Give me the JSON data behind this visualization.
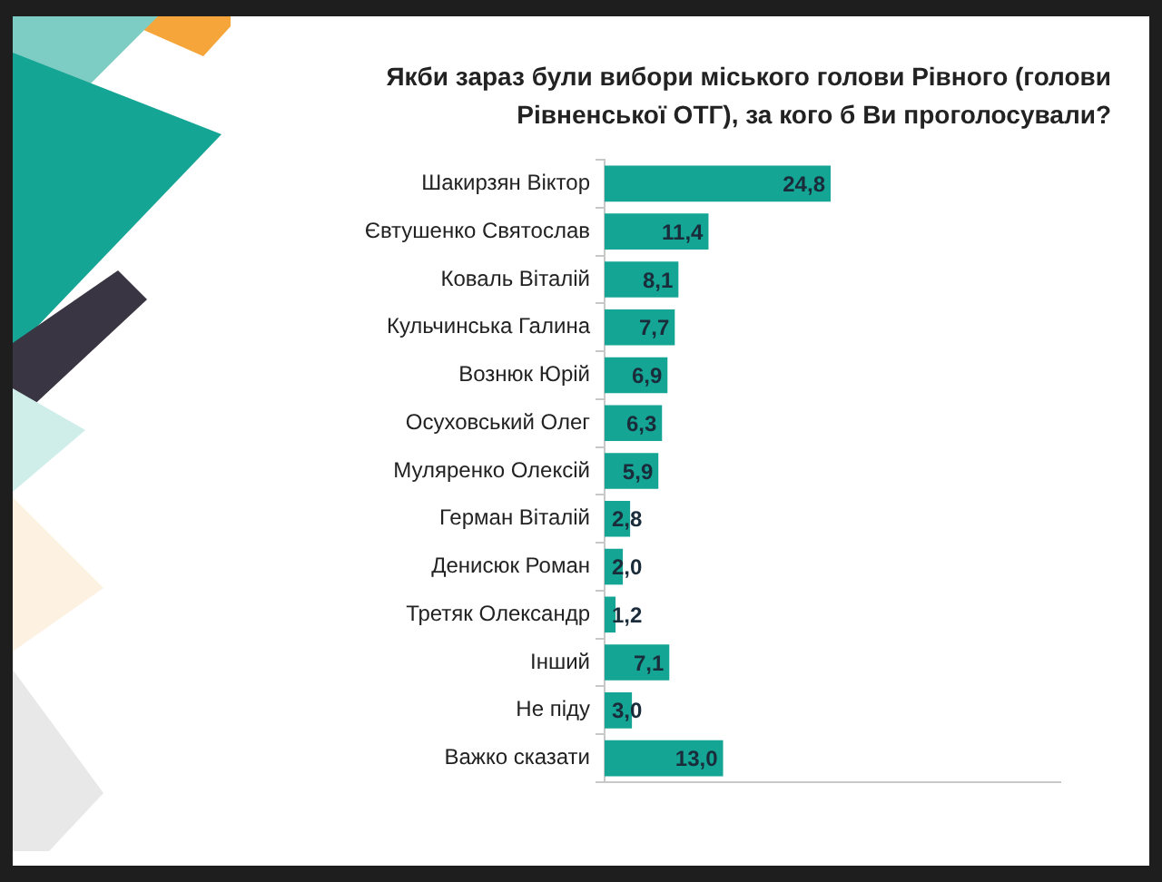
{
  "chart_data": {
    "type": "bar",
    "orientation": "horizontal",
    "title": "Якби зараз були вибори міського голови Рівного (голови Рівненської ОТГ), за кого б Ви проголосували?",
    "categories": [
      "Шакирзян Віктор",
      "Євтушенко Святослав",
      "Коваль Віталій",
      "Кульчинська Галина",
      "Вознюк Юрій",
      "Осуховський Олег",
      "Муляренко Олексій",
      "Герман Віталій",
      "Денисюк Роман",
      "Третяк Олександр",
      "Інший",
      "Не піду",
      "Важко сказати"
    ],
    "values": [
      24.8,
      11.4,
      8.1,
      7.7,
      6.9,
      6.3,
      5.9,
      2.8,
      2.0,
      1.2,
      7.1,
      3.0,
      13.0
    ],
    "value_labels": [
      "24,8",
      "11,4",
      "8,1",
      "7,7",
      "6,9",
      "6,3",
      "5,9",
      "2,8",
      "2,0",
      "1,2",
      "7,1",
      "3,0",
      "13,0"
    ],
    "color": "#14a595",
    "tick_labels": "y",
    "grid": false,
    "legend": false
  }
}
